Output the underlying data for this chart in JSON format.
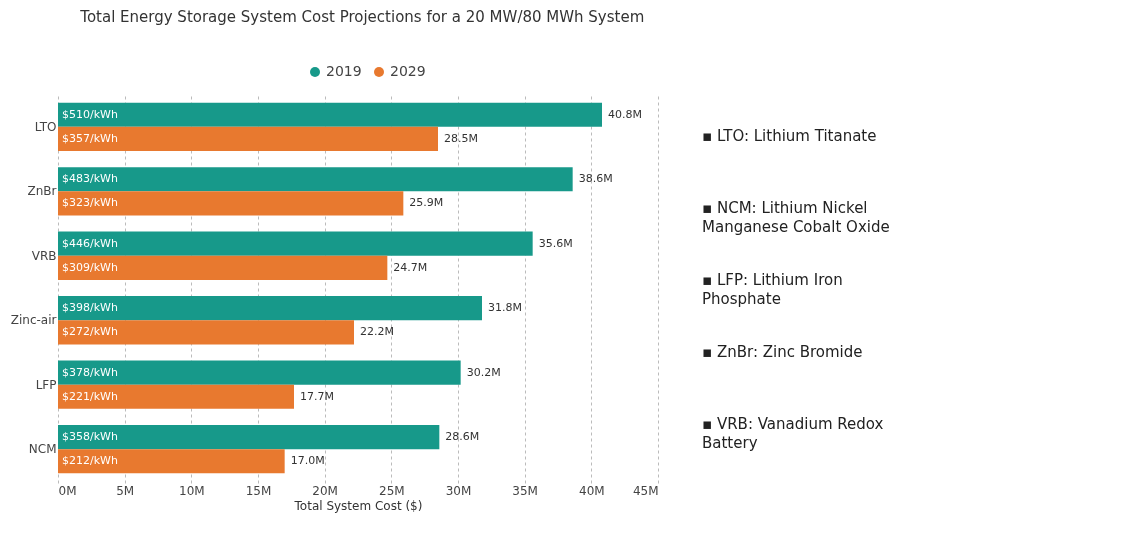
{
  "chart_data": {
    "type": "bar",
    "orientation": "horizontal",
    "title": "Total Energy Storage System Cost Projections for a 20 MW/80 MWh System",
    "xlabel": "Total System Cost ($)",
    "categories": [
      "LTO",
      "ZnBr",
      "VRB",
      "Zinc-air",
      "LFP",
      "NCM"
    ],
    "series": [
      {
        "name": "2019",
        "color": "#17998a",
        "values": [
          40.8,
          38.6,
          35.6,
          31.8,
          30.2,
          28.6
        ],
        "value_labels": [
          "40.8M",
          "38.6M",
          "35.6M",
          "31.8M",
          "30.2M",
          "28.6M"
        ]
      },
      {
        "name": "2029",
        "color": "#e8792f",
        "values": [
          28.5,
          25.9,
          24.7,
          22.2,
          17.7,
          17.0
        ],
        "value_labels": [
          "28.5M",
          "25.9M",
          "24.7M",
          "22.2M",
          "17.7M",
          "17.0M"
        ]
      }
    ],
    "xlim": [
      0,
      45
    ],
    "xticks": [
      {
        "value": 0,
        "label": "0M"
      },
      {
        "value": 5,
        "label": "5M"
      },
      {
        "value": 10,
        "label": "10M"
      },
      {
        "value": 15,
        "label": "15M"
      },
      {
        "value": 20,
        "label": "20M"
      },
      {
        "value": 25,
        "label": "25M"
      },
      {
        "value": 30,
        "label": "30M"
      },
      {
        "value": 35,
        "label": "35M"
      },
      {
        "value": 40,
        "label": "40M"
      },
      {
        "value": 45,
        "label": "45M"
      }
    ],
    "grid": "x",
    "legend": "top",
    "annotations": [
      {
        "text": "$510/kWh",
        "y": "LTO"
      },
      {
        "text": "$357/kWh",
        "y": "LTO"
      },
      {
        "text": "$483/kWh",
        "y": "ZnBr"
      },
      {
        "text": "$323/kWh",
        "y": "ZnBr"
      },
      {
        "text": "$446/kWh",
        "y": "VRB"
      },
      {
        "text": "$309/kWh",
        "y": "VRB"
      },
      {
        "text": "$398/kWh",
        "y": "Zinc-air"
      },
      {
        "text": "$272/kWh",
        "y": "Zinc-air"
      },
      {
        "text": "$378/kWh",
        "y": "LFP"
      },
      {
        "text": "$221/kWh",
        "y": "LFP"
      },
      {
        "text": "$358/kWh",
        "y": "NCM"
      },
      {
        "text": "$212/kWh",
        "y": "NCM"
      },
      "▪ LTO: Lithium Titanate",
      "▪ NCM: Lithium Nickel Manganese Cobalt Oxide",
      "▪ LFP: Lithium Iron Phosphate",
      "▪ ZnBr: Zinc Bromide",
      "▪ VRB: Vanadium Redox Battery"
    ]
  }
}
